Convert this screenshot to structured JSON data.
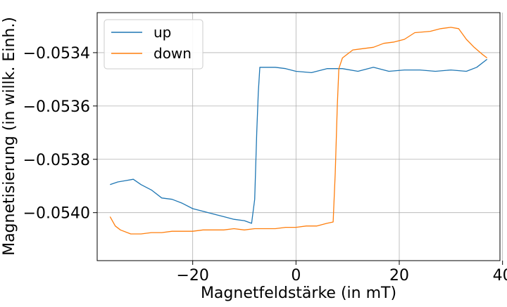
{
  "chart_data": {
    "type": "line",
    "xlabel": "Magnetfeldstärke (in  mT)",
    "ylabel": "Magnetisierung (in willk. Einh.)",
    "xlim": [
      -38.5,
      39.5
    ],
    "ylim": [
      -0.05418,
      -0.05325
    ],
    "xticks": [
      -20,
      0,
      20,
      40
    ],
    "xtick_labels": [
      "−20",
      "0",
      "20",
      "40"
    ],
    "yticks": [
      -0.054,
      -0.0538,
      -0.0536,
      -0.0534
    ],
    "ytick_labels": [
      "−0.0540",
      "−0.0538",
      "−0.0536",
      "−0.0534"
    ],
    "grid": true,
    "legend_position": "top-left",
    "series": [
      {
        "name": "up",
        "color": "#1f77b4",
        "points": [
          [
            -36.0,
            -0.053895
          ],
          [
            -34.5,
            -0.053885
          ],
          [
            -33.0,
            -0.05388
          ],
          [
            -31.5,
            -0.053875
          ],
          [
            -30.0,
            -0.053895
          ],
          [
            -28.0,
            -0.053915
          ],
          [
            -26.0,
            -0.053945
          ],
          [
            -24.0,
            -0.05395
          ],
          [
            -22.0,
            -0.053965
          ],
          [
            -20.0,
            -0.053985
          ],
          [
            -18.0,
            -0.053995
          ],
          [
            -16.0,
            -0.054005
          ],
          [
            -14.0,
            -0.054015
          ],
          [
            -12.0,
            -0.054025
          ],
          [
            -10.0,
            -0.05403
          ],
          [
            -8.6,
            -0.05404
          ],
          [
            -8.0,
            -0.05395
          ],
          [
            -7.6,
            -0.0537
          ],
          [
            -7.3,
            -0.05355
          ],
          [
            -7.0,
            -0.053455
          ],
          [
            -6.0,
            -0.053455
          ],
          [
            -4.0,
            -0.053455
          ],
          [
            -2.0,
            -0.05346
          ],
          [
            0.0,
            -0.05347
          ],
          [
            3.0,
            -0.053475
          ],
          [
            6.0,
            -0.05346
          ],
          [
            9.0,
            -0.05346
          ],
          [
            12.0,
            -0.05347
          ],
          [
            15.0,
            -0.053455
          ],
          [
            18.0,
            -0.05347
          ],
          [
            21.0,
            -0.053465
          ],
          [
            24.0,
            -0.053465
          ],
          [
            27.0,
            -0.05347
          ],
          [
            30.0,
            -0.053465
          ],
          [
            33.0,
            -0.05347
          ],
          [
            35.0,
            -0.053455
          ],
          [
            37.0,
            -0.053425
          ]
        ]
      },
      {
        "name": "down",
        "color": "#ff7f0e",
        "points": [
          [
            -36.0,
            -0.054015
          ],
          [
            -35.0,
            -0.05405
          ],
          [
            -34.0,
            -0.054065
          ],
          [
            -32.0,
            -0.05408
          ],
          [
            -30.0,
            -0.05408
          ],
          [
            -28.0,
            -0.054075
          ],
          [
            -26.0,
            -0.054075
          ],
          [
            -24.0,
            -0.05407
          ],
          [
            -22.0,
            -0.05407
          ],
          [
            -20.0,
            -0.05407
          ],
          [
            -18.0,
            -0.054065
          ],
          [
            -16.0,
            -0.054065
          ],
          [
            -14.0,
            -0.054065
          ],
          [
            -12.0,
            -0.05406
          ],
          [
            -10.0,
            -0.054065
          ],
          [
            -8.0,
            -0.05406
          ],
          [
            -6.0,
            -0.05406
          ],
          [
            -4.0,
            -0.05406
          ],
          [
            -2.0,
            -0.054055
          ],
          [
            0.0,
            -0.054055
          ],
          [
            2.0,
            -0.05405
          ],
          [
            4.0,
            -0.05405
          ],
          [
            6.0,
            -0.05404
          ],
          [
            7.2,
            -0.054035
          ],
          [
            7.6,
            -0.05385
          ],
          [
            8.0,
            -0.0536
          ],
          [
            8.3,
            -0.05346
          ],
          [
            9.0,
            -0.05342
          ],
          [
            11.0,
            -0.05339
          ],
          [
            13.0,
            -0.053385
          ],
          [
            15.0,
            -0.05338
          ],
          [
            17.0,
            -0.053365
          ],
          [
            19.0,
            -0.05336
          ],
          [
            21.0,
            -0.05335
          ],
          [
            23.0,
            -0.053325
          ],
          [
            26.0,
            -0.05332
          ],
          [
            28.0,
            -0.05331
          ],
          [
            30.0,
            -0.053305
          ],
          [
            31.5,
            -0.05331
          ],
          [
            33.0,
            -0.05335
          ],
          [
            34.5,
            -0.05338
          ],
          [
            36.0,
            -0.053405
          ],
          [
            37.0,
            -0.05342
          ]
        ]
      }
    ]
  }
}
